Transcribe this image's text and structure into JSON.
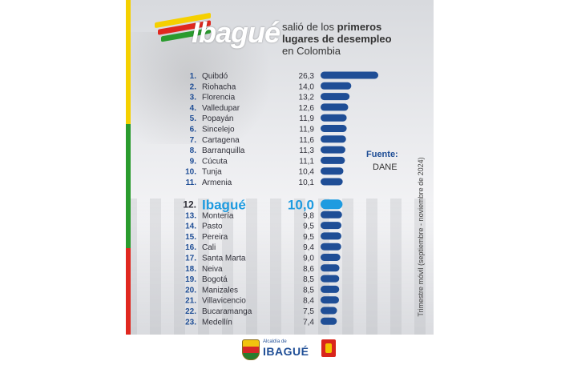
{
  "header": {
    "brand": "Ibagué",
    "subtitle_line1_prefix": "salió de los ",
    "subtitle_line1_bold": "primeros",
    "subtitle_line2": "lugares de desempleo",
    "subtitle_line3": "en Colombia"
  },
  "source": {
    "label": "Fuente:",
    "value": "DANE"
  },
  "period": "Trimestre móvil (septiembre - noviembre de 2024)",
  "footer": {
    "small": "Alcaldía de",
    "big": "IBAGUÉ"
  },
  "colors": {
    "bar": "#1f4e96",
    "highlight": "#1e9be0",
    "flag_yellow": "#f5d000",
    "flag_green": "#2a9b2e",
    "flag_red": "#e0281f"
  },
  "chart_data": {
    "type": "bar",
    "orientation": "horizontal",
    "highlight_index": 11,
    "rows": [
      {
        "rank": "1.",
        "city": "Quibdó",
        "value_label": "26,3",
        "value": 26.3
      },
      {
        "rank": "2.",
        "city": "Riohacha",
        "value_label": "14,0",
        "value": 14.0
      },
      {
        "rank": "3.",
        "city": "Florencia",
        "value_label": "13,2",
        "value": 13.2
      },
      {
        "rank": "4.",
        "city": "Valledupar",
        "value_label": "12,6",
        "value": 12.6
      },
      {
        "rank": "5.",
        "city": "Popayán",
        "value_label": "11,9",
        "value": 11.9
      },
      {
        "rank": "6.",
        "city": "Sincelejo",
        "value_label": "11,9",
        "value": 11.9
      },
      {
        "rank": "7.",
        "city": "Cartagena",
        "value_label": "11,6",
        "value": 11.6
      },
      {
        "rank": "8.",
        "city": "Barranquilla",
        "value_label": "11,3",
        "value": 11.3
      },
      {
        "rank": "9.",
        "city": "Cúcuta",
        "value_label": "11,1",
        "value": 11.1
      },
      {
        "rank": "10.",
        "city": "Tunja",
        "value_label": "10,4",
        "value": 10.4
      },
      {
        "rank": "11.",
        "city": "Armenia",
        "value_label": "10,1",
        "value": 10.1
      },
      {
        "rank": "12.",
        "city": "Ibagué",
        "value_label": "10,0",
        "value": 10.0
      },
      {
        "rank": "13.",
        "city": "Montería",
        "value_label": "9,8",
        "value": 9.8
      },
      {
        "rank": "14.",
        "city": "Pasto",
        "value_label": "9,5",
        "value": 9.5
      },
      {
        "rank": "15.",
        "city": "Pereira",
        "value_label": "9,5",
        "value": 9.5
      },
      {
        "rank": "16.",
        "city": "Cali",
        "value_label": "9,4",
        "value": 9.4
      },
      {
        "rank": "17.",
        "city": "Santa Marta",
        "value_label": "9,0",
        "value": 9.0
      },
      {
        "rank": "18.",
        "city": "Neiva",
        "value_label": "8,6",
        "value": 8.6
      },
      {
        "rank": "19.",
        "city": "Bogotá",
        "value_label": "8,5",
        "value": 8.5
      },
      {
        "rank": "20.",
        "city": "Manizales",
        "value_label": "8,5",
        "value": 8.5
      },
      {
        "rank": "21.",
        "city": "Villavicencio",
        "value_label": "8,4",
        "value": 8.4
      },
      {
        "rank": "22.",
        "city": "Bucaramanga",
        "value_label": "7,5",
        "value": 7.5
      },
      {
        "rank": "23.",
        "city": "Medellín",
        "value_label": "7,4",
        "value": 7.4
      }
    ]
  }
}
